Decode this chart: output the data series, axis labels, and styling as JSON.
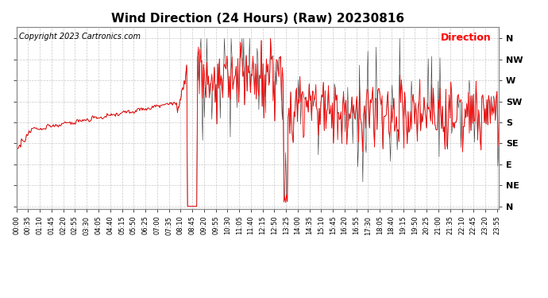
{
  "title": "Wind Direction (24 Hours) (Raw) 20230816",
  "copyright": "Copyright 2023 Cartronics.com",
  "legend_label": "Direction",
  "legend_color": "red",
  "background_color": "#ffffff",
  "grid_color": "#bbbbbb",
  "line_color": "red",
  "dark_line_color": "#333333",
  "ytick_labels": [
    "N",
    "NW",
    "W",
    "SW",
    "S",
    "SE",
    "E",
    "NE",
    "N"
  ],
  "ytick_values": [
    360,
    315,
    270,
    225,
    180,
    135,
    90,
    45,
    0
  ],
  "ylim": [
    -5,
    385
  ],
  "title_fontsize": 11,
  "copyright_fontsize": 7,
  "legend_fontsize": 9,
  "tick_fontsize": 6,
  "num_points": 576
}
